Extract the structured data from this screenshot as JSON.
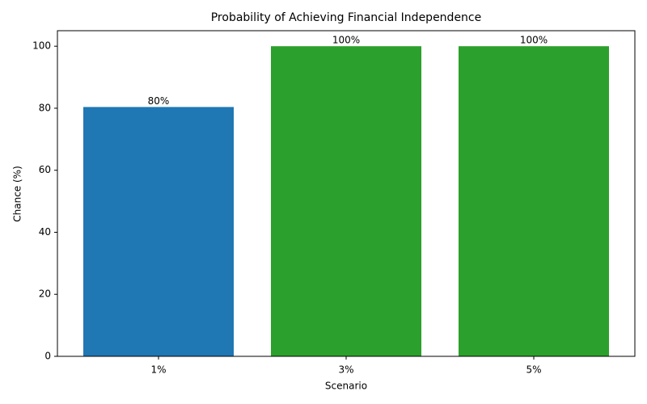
{
  "chart_data": {
    "type": "bar",
    "title": "Probability of Achieving Financial Independence",
    "x_label": "Scenario",
    "y_label": "Chance (%)",
    "categories": [
      "1%",
      "3%",
      "5%"
    ],
    "values": [
      80.4,
      100,
      100
    ],
    "value_labels": [
      "80%",
      "100%",
      "100%"
    ],
    "colors": [
      "#1f77b4",
      "#2ca02c",
      "#2ca02c"
    ],
    "ylim": [
      0,
      105
    ],
    "yticks": [
      0,
      20,
      40,
      60,
      80,
      100
    ],
    "grid": false
  }
}
